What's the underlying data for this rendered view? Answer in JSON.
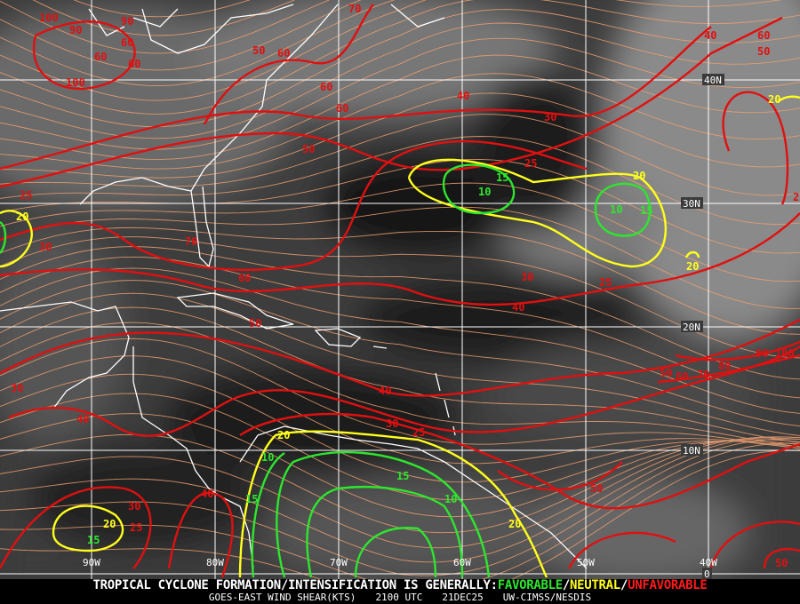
{
  "map": {
    "type": "satellite wind shear analysis",
    "colors": {
      "favorable": "#2ee62e",
      "neutral": "#ffff1e",
      "unfavorable": "#e01010",
      "streamlines": "#f0a070",
      "coastline": "#ffffff",
      "grid": "#ffffff"
    },
    "longitude_labels": [
      "90W",
      "80W",
      "70W",
      "60W",
      "50W",
      "40W"
    ],
    "latitude_labels": [
      "40N",
      "30N",
      "20N",
      "10N",
      "0"
    ],
    "contour_labels": {
      "unfavorable": [
        "100",
        "90",
        "90",
        "60",
        "60",
        "60",
        "100",
        "70",
        "50",
        "60",
        "60",
        "60",
        "40",
        "30",
        "50",
        "25",
        "70",
        "60",
        "30",
        "25",
        "40",
        "50",
        "40",
        "30",
        "25",
        "30",
        "40",
        "40",
        "30",
        "25",
        "50",
        "50",
        "60",
        "70",
        "80",
        "90",
        "100",
        "40",
        "60",
        "50",
        "2",
        "25",
        "30",
        "50"
      ],
      "neutral": [
        "20",
        "20",
        "20",
        "20",
        "20",
        "20",
        "20"
      ],
      "favorable": [
        "15",
        "10",
        "10",
        "15",
        "10",
        "15",
        "15",
        "10",
        "15"
      ]
    }
  },
  "footer": {
    "headline_prefix": "TROPICAL CYCLONE FORMATION/INTENSIFICATION IS GENERALLY:",
    "favorable": "FAVORABLE",
    "sep1": "/",
    "neutral": "NEUTRAL",
    "sep2": "/",
    "unfavorable": "UNFAVORABLE",
    "product": "GOES-EAST WIND SHEAR(KTS)",
    "time": "2100 UTC",
    "date": "21DEC25",
    "source": "UW-CIMSS/NESDIS"
  }
}
